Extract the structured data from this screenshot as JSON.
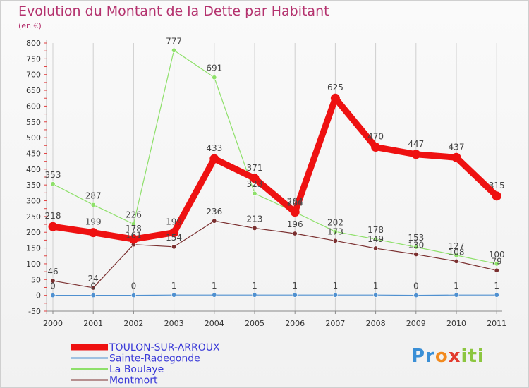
{
  "chart_data": {
    "type": "line",
    "title": "Evolution du Montant de la Dette par Habitant",
    "subtitle": "(en €)",
    "xlabel": "",
    "ylabel": "",
    "x": [
      "2000",
      "2001",
      "2002",
      "2003",
      "2004",
      "2005",
      "2006",
      "2007",
      "2008",
      "2009",
      "2010",
      "2011"
    ],
    "ylim": [
      -50,
      800
    ],
    "yticks": [
      -50,
      0,
      50,
      100,
      150,
      200,
      250,
      300,
      350,
      400,
      450,
      500,
      550,
      600,
      650,
      700,
      750,
      800
    ],
    "grid": "vertical",
    "legend": "bottom-left",
    "series": [
      {
        "name": "TOULON-SUR-ARROUX",
        "color": "#ee1111",
        "width": 9,
        "values": [
          218,
          199,
          178,
          199,
          433,
          371,
          264,
          625,
          470,
          447,
          437,
          315
        ],
        "labels": [
          "218",
          "199",
          "178",
          "199",
          "433",
          "371",
          "264",
          "625",
          "470",
          "447",
          "437",
          "315"
        ]
      },
      {
        "name": "Sainte-Radegonde",
        "color": "#4f90d0",
        "width": 1.2,
        "values": [
          0,
          0,
          0,
          1,
          1,
          1,
          1,
          1,
          1,
          0,
          1,
          1
        ],
        "labels": [
          "0",
          "0",
          "0",
          "1",
          "1",
          "1",
          "1",
          "1",
          "1",
          "0",
          "1",
          "1"
        ]
      },
      {
        "name": "La Boulaye",
        "color": "#8ee06a",
        "width": 1.2,
        "values": [
          353,
          287,
          226,
          777,
          691,
          323,
          264,
          202,
          178,
          153,
          127,
          100
        ],
        "labels": [
          "353",
          "287",
          "226",
          "777",
          "691",
          "323",
          "264",
          "202",
          "178",
          "153",
          "127",
          "100"
        ]
      },
      {
        "name": "Montmort",
        "color": "#7a2f2f",
        "width": 1.2,
        "values": [
          46,
          24,
          161,
          154,
          236,
          213,
          196,
          173,
          149,
          130,
          108,
          79
        ],
        "labels": [
          "46",
          "24",
          "161",
          "154",
          "236",
          "213",
          "196",
          "173",
          "149",
          "130",
          "108",
          "79"
        ]
      }
    ]
  },
  "legend_items": [
    {
      "label": "TOULON-SUR-ARROUX",
      "color": "#ee1111"
    },
    {
      "label": "Sainte-Radegonde",
      "color": "#4f90d0"
    },
    {
      "label": "La Boulaye",
      "color": "#8ee06a"
    },
    {
      "label": "Montmort",
      "color": "#7a2f2f"
    }
  ],
  "logo": {
    "parts": [
      "Pr",
      "o",
      "x",
      "iti"
    ]
  }
}
